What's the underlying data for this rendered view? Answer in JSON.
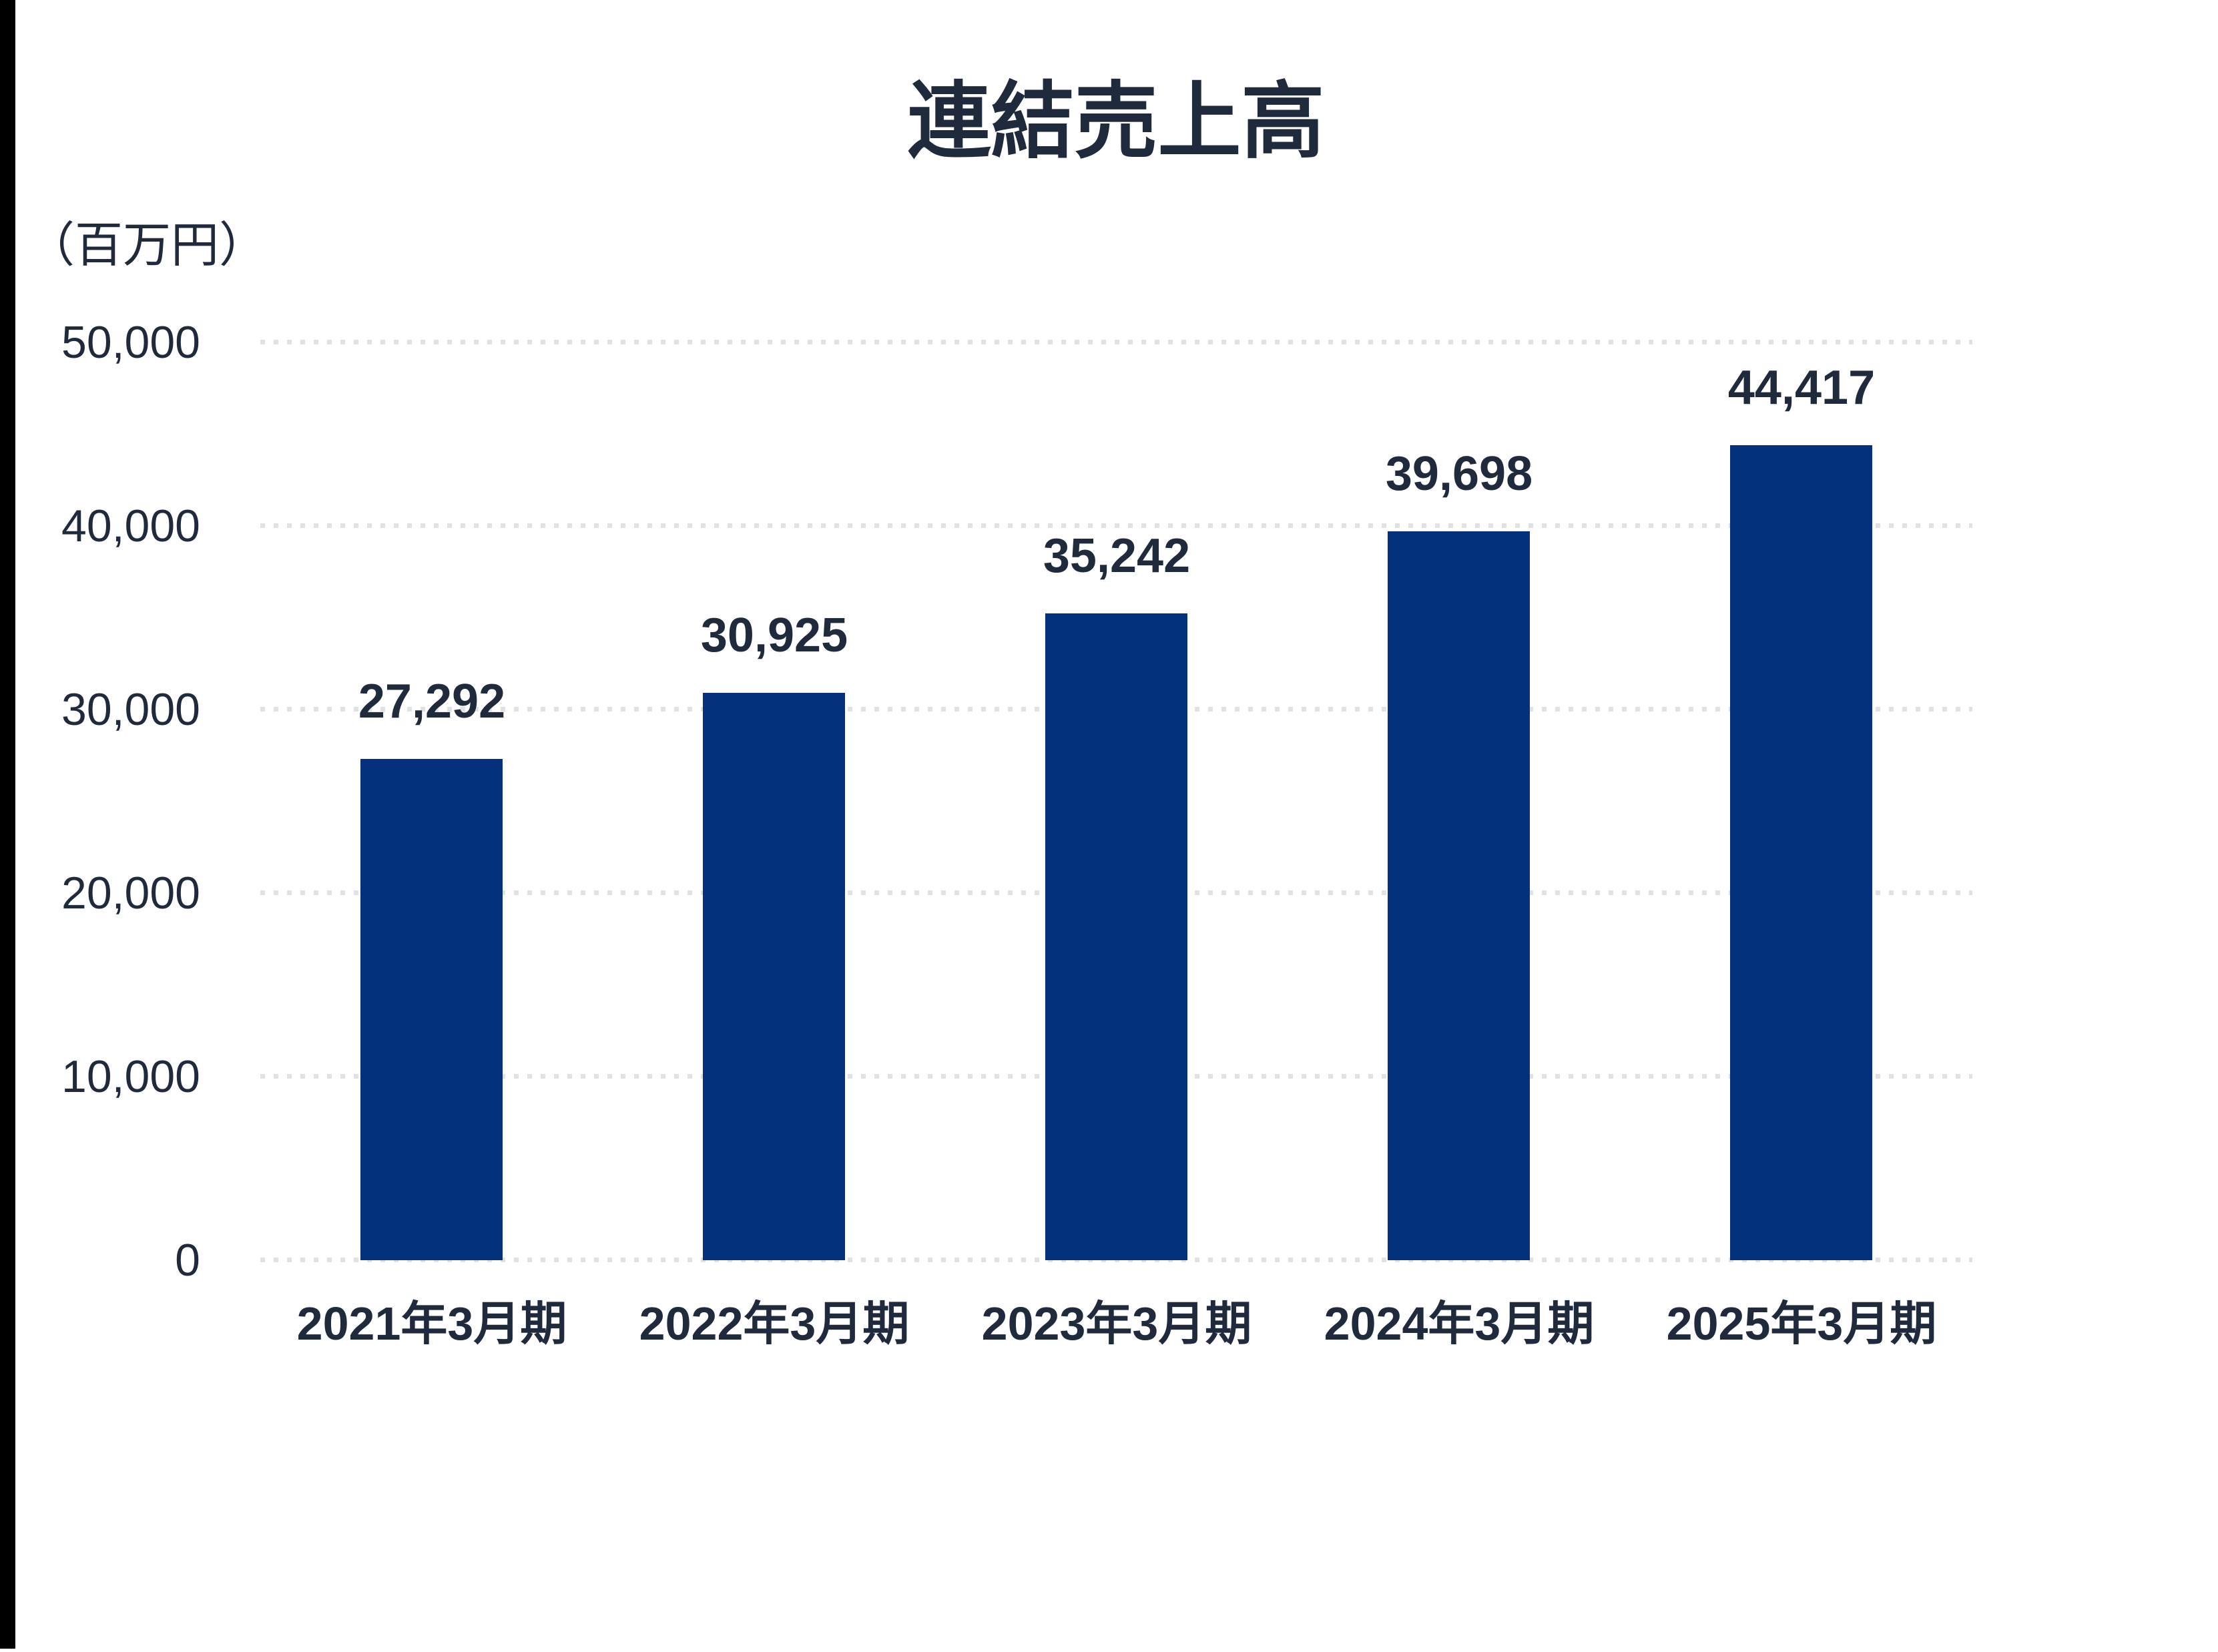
{
  "page": {
    "background": "#FFFFFF",
    "left_strip_color": "#000000"
  },
  "chart_data": {
    "type": "bar",
    "title": "連結売上高",
    "unit_label": "（百万円）",
    "xlabel": "",
    "ylabel": "",
    "categories": [
      "2021年3月期",
      "2022年3月期",
      "2023年3月期",
      "2024年3月期",
      "2025年3月期"
    ],
    "values": [
      27292,
      30925,
      35242,
      39698,
      44417
    ],
    "value_labels": [
      "27,292",
      "30,925",
      "35,242",
      "39,698",
      "44,417"
    ],
    "ylim": [
      0,
      50000
    ],
    "yticks": [
      {
        "value": 0,
        "label": "0"
      },
      {
        "value": 10000,
        "label": "10,000"
      },
      {
        "value": 20000,
        "label": "20,000"
      },
      {
        "value": 30000,
        "label": "30,000"
      },
      {
        "value": 40000,
        "label": "40,000"
      },
      {
        "value": 50000,
        "label": "50,000"
      }
    ],
    "grid": "horizontal-dotted",
    "legend": "none",
    "colors": {
      "bar": "#03317E",
      "text": "#1F2A3C",
      "grid": "#DFE3E4"
    }
  }
}
